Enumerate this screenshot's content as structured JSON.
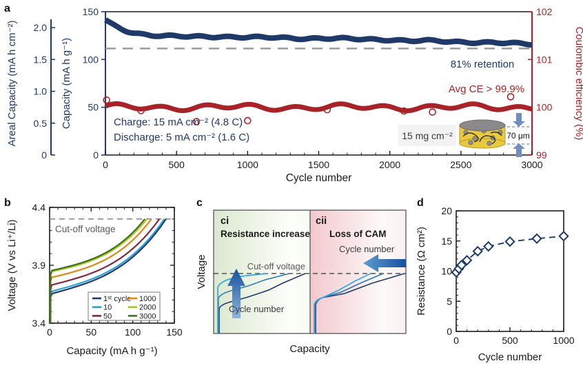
{
  "panels": {
    "a": "a",
    "b": "b",
    "c": "c",
    "d": "d"
  },
  "colors": {
    "navy": "#1f3a68",
    "red": "#a82328",
    "gray_dashed": "#9c9c9c",
    "text_gray": "#595959",
    "frame": "#1a1a1a",
    "cyan": "#2da0d8",
    "wine": "#7d2a40",
    "orange": "#e0861a",
    "yellow_green": "#a8c820",
    "green": "#40701f",
    "mid_blue": "#2e78b5",
    "light_cyan": "#35aadc",
    "arrow_light": "#8fb6de",
    "arrow_dark": "#16519e",
    "electrode_top": "#8a8a8a",
    "electrode_body": "#e9c93e",
    "steel_blue": "#6e8fc0",
    "ci_bg": "#dce8cf",
    "cii_bg": "#f3c8cd",
    "label_box_bg": "#f2f2f2"
  },
  "chart_data": [
    {
      "id": "a",
      "type": "line",
      "xlabel": "Cycle number",
      "xlim": [
        0,
        3000
      ],
      "xticks": [
        0,
        500,
        1000,
        1500,
        2000,
        2500,
        3000
      ],
      "axes": {
        "areal": {
          "label": "Areal Capacity (mA h cm⁻²)",
          "lim": [
            0,
            2.25
          ],
          "ticks": [
            0,
            0.5,
            1.0,
            1.5,
            2.0
          ]
        },
        "capacity": {
          "label": "Capacity (mA h g⁻¹)",
          "lim": [
            0,
            150
          ],
          "ticks": [
            0,
            50,
            100,
            150
          ]
        },
        "ce": {
          "label": "Coulombic efficiency (%)",
          "lim": [
            99,
            102
          ],
          "ticks": [
            99,
            100,
            101,
            102
          ]
        }
      },
      "series": [
        {
          "name": "Discharge capacity",
          "axis": "capacity",
          "style": "band",
          "anchors": [
            [
              0,
              141
            ],
            [
              40,
              137
            ],
            [
              80,
              134
            ],
            [
              120,
              131.5
            ],
            [
              160,
              129.5
            ],
            [
              200,
              128
            ],
            [
              260,
              126.6
            ],
            [
              320,
              125.6
            ],
            [
              400,
              124.7
            ],
            [
              500,
              124.1
            ],
            [
              600,
              123.8
            ],
            [
              700,
              124.0
            ],
            [
              800,
              124.1
            ],
            [
              900,
              123.7
            ],
            [
              1000,
              123.2
            ],
            [
              1100,
              122.9
            ],
            [
              1200,
              122.9
            ],
            [
              1300,
              122.5
            ],
            [
              1400,
              122.2
            ],
            [
              1500,
              122.1
            ],
            [
              1600,
              121.8
            ],
            [
              1700,
              121.6
            ],
            [
              1800,
              121.3
            ],
            [
              1900,
              121.1
            ],
            [
              2000,
              120.8
            ],
            [
              2050,
              120.2
            ],
            [
              2150,
              119.3
            ],
            [
              2250,
              119.6
            ],
            [
              2350,
              119.2
            ],
            [
              2500,
              118.5
            ],
            [
              2650,
              117.8
            ],
            [
              2800,
              117.1
            ],
            [
              2900,
              116.6
            ],
            [
              3000,
              116.3
            ]
          ]
        },
        {
          "name": "Coulombic efficiency",
          "axis": "ce",
          "style": "band",
          "base": 100.0
        }
      ],
      "ce_outliers": [
        [
          8,
          100.15
        ],
        [
          250,
          99.93
        ],
        [
          640,
          99.7
        ],
        [
          1000,
          99.72
        ],
        [
          1560,
          99.95
        ],
        [
          2100,
          99.92
        ],
        [
          2300,
          99.9
        ],
        [
          2850,
          100.22
        ]
      ],
      "retention_line_capacity": 111.5,
      "annotations": {
        "charge": "Charge: 15 mA cm⁻² (4.8 C)",
        "discharge": "Discharge: 5 mA cm⁻² (1.6 C)",
        "retention": "81% retention",
        "avg_ce": "Avg CE > 99.9%",
        "mass_loading": "15 mg cm⁻²",
        "thickness": "70 μm"
      }
    },
    {
      "id": "b",
      "type": "line",
      "xlabel": "Capacity (mA h g⁻¹)",
      "ylabel": "Voltage (V vs Li⁺/Li)",
      "xlim": [
        0,
        150
      ],
      "ylim": [
        3.4,
        4.4
      ],
      "xticks": [
        0,
        50,
        100,
        150
      ],
      "yticks": [
        3.4,
        3.9,
        4.4
      ],
      "cutoff_voltage": 4.3,
      "cutoff_label": "Cut-off voltage",
      "legend_position": "lower-right",
      "series": [
        {
          "name": "1ˢᵗ cycle",
          "color_key": "navy",
          "plateau": 3.655,
          "end_capacity": 140
        },
        {
          "name": "10",
          "color_key": "cyan",
          "plateau": 3.675,
          "end_capacity": 138
        },
        {
          "name": "50",
          "color_key": "wine",
          "plateau": 3.73,
          "end_capacity": 132
        },
        {
          "name": "1000",
          "color_key": "orange",
          "plateau": 3.795,
          "end_capacity": 122.5
        },
        {
          "name": "2000",
          "color_key": "yellow_green",
          "plateau": 3.845,
          "end_capacity": 117
        },
        {
          "name": "3000",
          "color_key": "green",
          "plateau": 3.855,
          "end_capacity": 114.5
        }
      ]
    },
    {
      "id": "c",
      "type": "schematic",
      "xlabel": "Capacity",
      "ylabel": "Voltage",
      "cutoff_label": "Cut-off voltage",
      "sub": [
        {
          "tag": "ci",
          "title": "Resistance increase",
          "arrow": "up",
          "arrow_label": "Cycle number"
        },
        {
          "tag": "cii",
          "title": "Loss of CAM",
          "arrow": "left",
          "arrow_label": "Cycle number"
        }
      ]
    },
    {
      "id": "d",
      "type": "scatter",
      "xlabel": "Cycle number",
      "ylabel": "Resistance (Ω cm²)",
      "xlim": [
        0,
        1000
      ],
      "ylim": [
        0,
        20
      ],
      "xticks": [
        0,
        500,
        1000
      ],
      "yticks": [
        0,
        5,
        10,
        15,
        20
      ],
      "marker": "open-diamond",
      "line_style": "dashed",
      "points": [
        [
          1,
          9.8
        ],
        [
          25,
          10.4
        ],
        [
          50,
          11.0
        ],
        [
          100,
          11.8
        ],
        [
          200,
          13.3
        ],
        [
          300,
          14.1
        ],
        [
          500,
          14.9
        ],
        [
          750,
          15.4
        ],
        [
          1000,
          15.8
        ]
      ]
    }
  ]
}
